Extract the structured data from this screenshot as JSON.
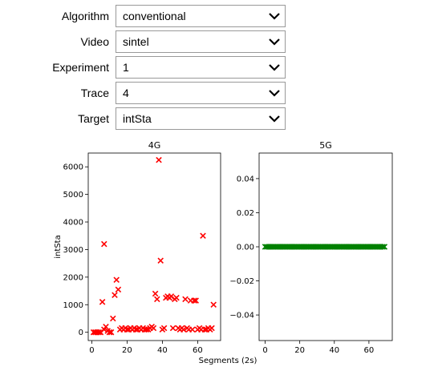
{
  "form": {
    "fields": [
      {
        "label": "Algorithm",
        "value": "conventional"
      },
      {
        "label": "Video",
        "value": "sintel"
      },
      {
        "label": "Experiment",
        "value": "1"
      },
      {
        "label": "Trace",
        "value": "4"
      },
      {
        "label": "Target",
        "value": "intSta"
      }
    ]
  },
  "chart_data": [
    {
      "type": "scatter",
      "title": "4G",
      "ylabel": "intSta",
      "xlabel": "Segments (2s)",
      "xlim": [
        -2,
        73
      ],
      "ylim": [
        -300,
        6500
      ],
      "xticks": [
        "0",
        "20",
        "40",
        "60"
      ],
      "yticks": [
        "0",
        "1000",
        "2000",
        "3000",
        "4000",
        "5000",
        "6000"
      ],
      "marker": "x",
      "color": "#ff0000",
      "points": [
        [
          1,
          0
        ],
        [
          2,
          0
        ],
        [
          3,
          0
        ],
        [
          4,
          0
        ],
        [
          5,
          0
        ],
        [
          6,
          1100
        ],
        [
          7,
          3200
        ],
        [
          7,
          100
        ],
        [
          8,
          200
        ],
        [
          9,
          50
        ],
        [
          10,
          0
        ],
        [
          11,
          0
        ],
        [
          12,
          500
        ],
        [
          13,
          1350
        ],
        [
          14,
          1900
        ],
        [
          15,
          1550
        ],
        [
          16,
          100
        ],
        [
          17,
          150
        ],
        [
          18,
          100
        ],
        [
          19,
          150
        ],
        [
          20,
          100
        ],
        [
          21,
          100
        ],
        [
          22,
          150
        ],
        [
          23,
          100
        ],
        [
          24,
          150
        ],
        [
          25,
          100
        ],
        [
          26,
          100
        ],
        [
          27,
          150
        ],
        [
          28,
          100
        ],
        [
          29,
          150
        ],
        [
          30,
          100
        ],
        [
          31,
          100
        ],
        [
          32,
          100
        ],
        [
          33,
          150
        ],
        [
          34,
          200
        ],
        [
          35,
          150
        ],
        [
          36,
          1400
        ],
        [
          37,
          1200
        ],
        [
          38,
          6250
        ],
        [
          39,
          2600
        ],
        [
          40,
          100
        ],
        [
          41,
          150
        ],
        [
          42,
          1250
        ],
        [
          43,
          1300
        ],
        [
          44,
          1250
        ],
        [
          45,
          1300
        ],
        [
          46,
          150
        ],
        [
          47,
          1200
        ],
        [
          48,
          1250
        ],
        [
          49,
          150
        ],
        [
          50,
          100
        ],
        [
          51,
          150
        ],
        [
          52,
          100
        ],
        [
          53,
          1200
        ],
        [
          54,
          150
        ],
        [
          55,
          100
        ],
        [
          56,
          1150
        ],
        [
          57,
          100
        ],
        [
          58,
          1150
        ],
        [
          59,
          1150
        ],
        [
          60,
          100
        ],
        [
          61,
          150
        ],
        [
          62,
          100
        ],
        [
          63,
          3500
        ],
        [
          64,
          100
        ],
        [
          65,
          100
        ],
        [
          66,
          150
        ],
        [
          67,
          100
        ],
        [
          68,
          150
        ],
        [
          69,
          1000
        ]
      ]
    },
    {
      "type": "scatter",
      "title": "5G",
      "xlim": [
        -3.5,
        73.5
      ],
      "ylim": [
        -0.055,
        0.055
      ],
      "xticks": [
        "0",
        "20",
        "40",
        "60"
      ],
      "yticks": [
        "−0.04",
        "−0.02",
        "0.00",
        "0.02",
        "0.04"
      ],
      "marker": "x",
      "color": "#008000",
      "points_x_range": [
        0,
        69
      ],
      "points_y": 0
    }
  ]
}
